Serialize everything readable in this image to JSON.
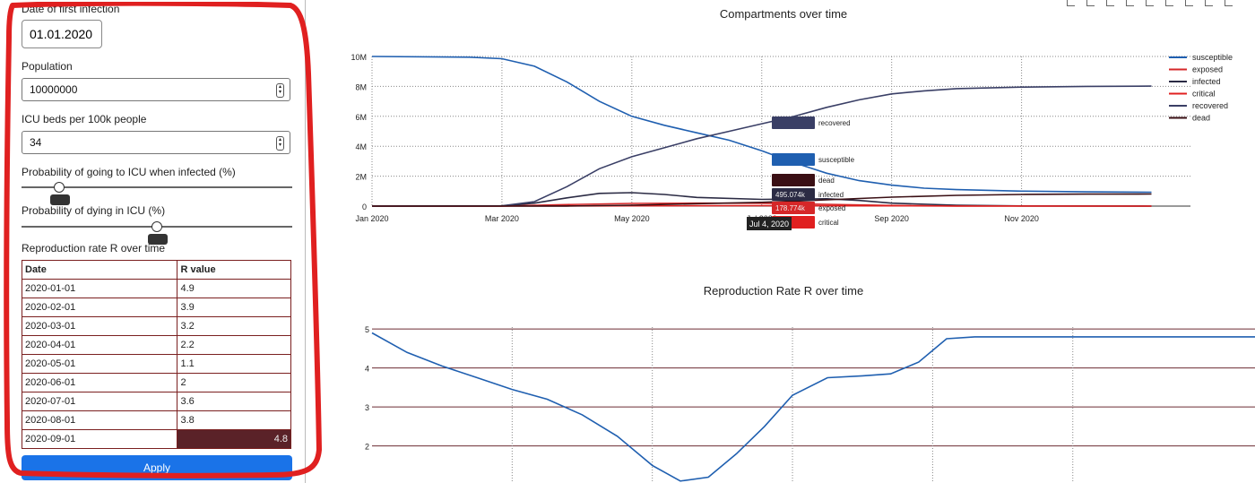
{
  "sidebar": {
    "first_infection_label": "Date of first infection",
    "first_infection_value": "01.01.2020",
    "population_label": "Population",
    "population_value": "10000000",
    "icu_beds_label": "ICU beds per 100k people",
    "icu_beds_value": "34",
    "prob_icu_label": "Probability of going to ICU when infected (%)",
    "prob_icu_value": 0.14,
    "prob_die_label": "Probability of dying in ICU (%)",
    "prob_die_value": 0.5,
    "r_table_label": "Reproduction rate R over time",
    "r_table_headers": [
      "Date",
      "R value"
    ],
    "r_table_rows": [
      {
        "date": "2020-01-01",
        "r": "4.9"
      },
      {
        "date": "2020-02-01",
        "r": "3.9"
      },
      {
        "date": "2020-03-01",
        "r": "3.2"
      },
      {
        "date": "2020-04-01",
        "r": "2.2"
      },
      {
        "date": "2020-05-01",
        "r": "1.1"
      },
      {
        "date": "2020-06-01",
        "r": "2"
      },
      {
        "date": "2020-07-01",
        "r": "3.6"
      },
      {
        "date": "2020-08-01",
        "r": "3.8"
      },
      {
        "date": "2020-09-01",
        "r": "4.8"
      }
    ],
    "apply_label": "Apply",
    "annotation_color": "#e02020"
  },
  "chart_data": [
    {
      "type": "line",
      "title": "Compartments over time",
      "x_ticks": [
        "Jan 2020",
        "Mar 2020",
        "May 2020",
        "Jul 2020",
        "Sep 2020",
        "Nov 2020"
      ],
      "y_ticks": [
        "0",
        "2M",
        "4M",
        "6M",
        "8M",
        "10M"
      ],
      "ylim": [
        0,
        10000000
      ],
      "legend_position": "right",
      "hover_date": "Jul 4, 2020",
      "series": [
        {
          "name": "susceptible",
          "color": "#1f5fb0",
          "hover_label": "susceptible",
          "hover_value": "",
          "points": [
            [
              0,
              10000000
            ],
            [
              1.5,
              9950000
            ],
            [
              2,
              9850000
            ],
            [
              2.5,
              9350000
            ],
            [
              3,
              8300000
            ],
            [
              3.5,
              7000000
            ],
            [
              4,
              6000000
            ],
            [
              4.5,
              5400000
            ],
            [
              5,
              4900000
            ],
            [
              5.5,
              4400000
            ],
            [
              6,
              3700000
            ],
            [
              6.5,
              2900000
            ],
            [
              7,
              2200000
            ],
            [
              7.5,
              1700000
            ],
            [
              8,
              1400000
            ],
            [
              8.5,
              1200000
            ],
            [
              9,
              1100000
            ],
            [
              10,
              1000000
            ],
            [
              11,
              950000
            ],
            [
              12,
              930000
            ]
          ]
        },
        {
          "name": "exposed",
          "color": "#d62728",
          "hover_label": "exposed",
          "hover_value": "178.774k",
          "points": [
            [
              0,
              0
            ],
            [
              2,
              5000
            ],
            [
              3,
              100000
            ],
            [
              4,
              180000
            ],
            [
              5,
              200000
            ],
            [
              6,
              190000
            ],
            [
              7,
              120000
            ],
            [
              8,
              40000
            ],
            [
              9,
              10000
            ],
            [
              12,
              0
            ]
          ]
        },
        {
          "name": "infected",
          "color": "#2b2b44",
          "hover_label": "infected",
          "hover_value": "495.074k",
          "points": [
            [
              0,
              0
            ],
            [
              2,
              10000
            ],
            [
              2.5,
              200000
            ],
            [
              3,
              550000
            ],
            [
              3.5,
              850000
            ],
            [
              4,
              900000
            ],
            [
              4.5,
              780000
            ],
            [
              5,
              580000
            ],
            [
              6,
              450000
            ],
            [
              7,
              490000
            ],
            [
              7.5,
              380000
            ],
            [
              8,
              200000
            ],
            [
              9,
              60000
            ],
            [
              10,
              10000
            ],
            [
              12,
              0
            ]
          ]
        },
        {
          "name": "critical",
          "color": "#e02020",
          "hover_label": "critical",
          "hover_value": "",
          "points": [
            [
              0,
              0
            ],
            [
              3,
              10000
            ],
            [
              4,
              20000
            ],
            [
              5,
              25000
            ],
            [
              6,
              28000
            ],
            [
              7,
              25000
            ],
            [
              8,
              15000
            ],
            [
              9,
              5000
            ],
            [
              12,
              0
            ]
          ]
        },
        {
          "name": "recovered",
          "color": "#3a3f66",
          "hover_label": "recovered",
          "hover_value": "",
          "points": [
            [
              0,
              0
            ],
            [
              2,
              20000
            ],
            [
              2.5,
              300000
            ],
            [
              3,
              1300000
            ],
            [
              3.5,
              2500000
            ],
            [
              4,
              3300000
            ],
            [
              4.5,
              3900000
            ],
            [
              5,
              4500000
            ],
            [
              5.5,
              5000000
            ],
            [
              6,
              5500000
            ],
            [
              6.5,
              6000000
            ],
            [
              7,
              6600000
            ],
            [
              7.5,
              7100000
            ],
            [
              8,
              7500000
            ],
            [
              8.5,
              7700000
            ],
            [
              9,
              7850000
            ],
            [
              10,
              7950000
            ],
            [
              11,
              8000000
            ],
            [
              12,
              8020000
            ]
          ]
        },
        {
          "name": "dead",
          "color": "#3a0f14",
          "hover_label": "dead",
          "hover_value": "",
          "points": [
            [
              0,
              0
            ],
            [
              3,
              5000
            ],
            [
              4,
              60000
            ],
            [
              5,
              160000
            ],
            [
              6,
              250000
            ],
            [
              7,
              420000
            ],
            [
              8,
              600000
            ],
            [
              9,
              720000
            ],
            [
              10,
              780000
            ],
            [
              11,
              800000
            ],
            [
              12,
              810000
            ]
          ]
        }
      ]
    },
    {
      "type": "line",
      "title": "Reproduction Rate R over time",
      "y_ticks": [
        "2",
        "3",
        "4",
        "5"
      ],
      "ylim": [
        1.05,
        5.05
      ],
      "series": [
        {
          "name": "",
          "color": "#1f5fb0",
          "points": [
            [
              0,
              4.9
            ],
            [
              0.5,
              4.4
            ],
            [
              1,
              4.05
            ],
            [
              1.5,
              3.75
            ],
            [
              2,
              3.45
            ],
            [
              2.5,
              3.2
            ],
            [
              3,
              2.8
            ],
            [
              3.5,
              2.25
            ],
            [
              4,
              1.5
            ],
            [
              4.4,
              1.1
            ],
            [
              4.8,
              1.2
            ],
            [
              5.2,
              1.8
            ],
            [
              5.6,
              2.5
            ],
            [
              6,
              3.3
            ],
            [
              6.5,
              3.75
            ],
            [
              7,
              3.8
            ],
            [
              7.4,
              3.85
            ],
            [
              7.8,
              4.15
            ],
            [
              8.2,
              4.75
            ],
            [
              8.6,
              4.8
            ],
            [
              9,
              4.8
            ],
            [
              12.6,
              4.8
            ]
          ]
        }
      ]
    }
  ]
}
